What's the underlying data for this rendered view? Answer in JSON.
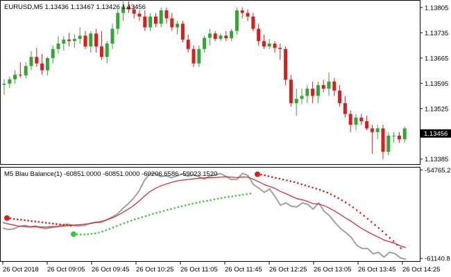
{
  "main_header": "EURUSD,M5  1.13436 1.13467 1.13426 1.13456",
  "indicator_header": "M5 Blau Balance(1) -60851.0000 -60851.0000 -60206.6586 -59023.1520",
  "colors": {
    "bull": "#32a532",
    "bear": "#e01b1b",
    "gray_line": "#a0a0a0",
    "red_line": "#e01b1b",
    "dot_red": "#e01b1b",
    "dot_green": "#32cc32",
    "price_tag_bg": "#000000",
    "price_tag_text": "#ffffff"
  },
  "chart_data": [
    {
      "type": "candlestick",
      "title": "EURUSD,M5",
      "ohlc_header": [
        "1.13436",
        "1.13467",
        "1.13426",
        "1.13456"
      ],
      "ylim": [
        1.13373,
        1.13822
      ],
      "y_ticks": [
        "1.13805",
        "1.13735",
        "1.13665",
        "1.13595",
        "1.13525",
        "1.13456",
        "1.13385"
      ],
      "current_price": "1.13456",
      "candles": [
        [
          1.13591,
          1.13606,
          1.13563,
          1.13594
        ],
        [
          1.13594,
          1.13614,
          1.13582,
          1.13606
        ],
        [
          1.13606,
          1.13631,
          1.13594,
          1.13619
        ],
        [
          1.13619,
          1.13653,
          1.1361,
          1.13617
        ],
        [
          1.13617,
          1.13653,
          1.13608,
          1.13643
        ],
        [
          1.13643,
          1.13684,
          1.13631,
          1.13668
        ],
        [
          1.13668,
          1.13693,
          1.13641,
          1.1365
        ],
        [
          1.1365,
          1.13677,
          1.13619,
          1.13631
        ],
        [
          1.13631,
          1.13668,
          1.13617,
          1.13665
        ],
        [
          1.13665,
          1.137,
          1.1365,
          1.1369
        ],
        [
          1.1369,
          1.13725,
          1.13677,
          1.13705
        ],
        [
          1.13705,
          1.13725,
          1.13686,
          1.13716
        ],
        [
          1.13716,
          1.13735,
          1.13697,
          1.13712
        ],
        [
          1.13712,
          1.1373,
          1.13693,
          1.13718
        ],
        [
          1.13718,
          1.1375,
          1.13705,
          1.13727
        ],
        [
          1.13727,
          1.1374,
          1.1369,
          1.13697
        ],
        [
          1.13697,
          1.1374,
          1.1368,
          1.13733
        ],
        [
          1.13733,
          1.13746,
          1.1368,
          1.13697
        ],
        [
          1.13697,
          1.1374,
          1.1366,
          1.13668
        ],
        [
          1.13668,
          1.13712,
          1.1365,
          1.13705
        ],
        [
          1.13705,
          1.1376,
          1.1369,
          1.13746
        ],
        [
          1.13746,
          1.138,
          1.1373,
          1.1379
        ],
        [
          1.1379,
          1.13822,
          1.13768,
          1.13808
        ],
        [
          1.13808,
          1.13822,
          1.1379,
          1.138
        ],
        [
          1.138,
          1.13812,
          1.13775,
          1.13788
        ],
        [
          1.13788,
          1.13797,
          1.13768,
          1.1378
        ],
        [
          1.1378,
          1.13797,
          1.1374,
          1.1375
        ],
        [
          1.1375,
          1.1379,
          1.1374,
          1.1378
        ],
        [
          1.1378,
          1.1379,
          1.1375,
          1.1376
        ],
        [
          1.1376,
          1.13805,
          1.1375,
          1.13797
        ],
        [
          1.13797,
          1.13805,
          1.1376,
          1.13775
        ],
        [
          1.13775,
          1.1379,
          1.1374,
          1.1375
        ],
        [
          1.1375,
          1.13768,
          1.1373,
          1.1376
        ],
        [
          1.1376,
          1.13768,
          1.13708,
          1.13716
        ],
        [
          1.13716,
          1.1373,
          1.1368,
          1.1369
        ],
        [
          1.1369,
          1.137,
          1.1364,
          1.1365
        ],
        [
          1.1365,
          1.137,
          1.1364,
          1.1369
        ],
        [
          1.1369,
          1.13727,
          1.1368,
          1.13721
        ],
        [
          1.13721,
          1.13746,
          1.137,
          1.13733
        ],
        [
          1.13733,
          1.1374,
          1.13712,
          1.13718
        ],
        [
          1.13718,
          1.13733,
          1.13712,
          1.13727
        ],
        [
          1.13727,
          1.1374,
          1.13712,
          1.1372
        ],
        [
          1.1372,
          1.13746,
          1.13712,
          1.1374
        ],
        [
          1.1374,
          1.13805,
          1.1373,
          1.13797
        ],
        [
          1.13797,
          1.13805,
          1.13775,
          1.1379
        ],
        [
          1.1379,
          1.138,
          1.13768,
          1.1378
        ],
        [
          1.1378,
          1.1379,
          1.1374,
          1.13746
        ],
        [
          1.13746,
          1.1376,
          1.137,
          1.13712
        ],
        [
          1.13712,
          1.1373,
          1.1369,
          1.13697
        ],
        [
          1.13697,
          1.13718,
          1.1369,
          1.13705
        ],
        [
          1.13705,
          1.13712,
          1.1368,
          1.13693
        ],
        [
          1.13693,
          1.13705,
          1.1366,
          1.1369
        ],
        [
          1.1369,
          1.13697,
          1.1359,
          1.13605
        ],
        [
          1.13605,
          1.13618,
          1.1353,
          1.1354
        ],
        [
          1.1354,
          1.1358,
          1.13505,
          1.13552
        ],
        [
          1.13552,
          1.1358,
          1.13537,
          1.1356
        ],
        [
          1.1356,
          1.1359,
          1.1354,
          1.1358
        ],
        [
          1.1358,
          1.136,
          1.1354,
          1.1356
        ],
        [
          1.1356,
          1.136,
          1.1354,
          1.1359
        ],
        [
          1.1359,
          1.13605,
          1.1357,
          1.1358
        ],
        [
          1.1358,
          1.13625,
          1.1356,
          1.136
        ],
        [
          1.136,
          1.1361,
          1.1356,
          1.13575
        ],
        [
          1.13575,
          1.1359,
          1.1353,
          1.1354
        ],
        [
          1.1354,
          1.1356,
          1.135,
          1.1351
        ],
        [
          1.1351,
          1.1352,
          1.1346,
          1.1348
        ],
        [
          1.1348,
          1.1351,
          1.13465,
          1.135
        ],
        [
          1.135,
          1.1351,
          1.1348,
          1.1349
        ],
        [
          1.1349,
          1.13505,
          1.13465,
          1.1347
        ],
        [
          1.1347,
          1.1348,
          1.134,
          1.1346
        ],
        [
          1.1346,
          1.1348,
          1.1344,
          1.1347
        ],
        [
          1.1347,
          1.1348,
          1.13385,
          1.13405
        ],
        [
          1.13405,
          1.1346,
          1.13395,
          1.1345
        ],
        [
          1.1345,
          1.1346,
          1.1343,
          1.1345
        ],
        [
          1.1345,
          1.1346,
          1.1343,
          1.1344
        ],
        [
          1.1344,
          1.13475,
          1.1343,
          1.1347
        ]
      ]
    },
    {
      "type": "line",
      "title": "M5 Blau Balance(1)",
      "values_header": [
        "-60851.0000",
        "-60851.0000",
        "-60206.6586",
        "-59023.1520"
      ],
      "ylim": [
        -61280,
        -54650
      ],
      "y_ticks": [
        "-54765.2",
        "-61140.8"
      ],
      "series": [
        {
          "color": "gray",
          "values": [
            -58950,
            -59060,
            -59010,
            -58830,
            -58760,
            -58860,
            -58800,
            -58940,
            -58990,
            -58910,
            -58860,
            -58720,
            -58680,
            -58770,
            -58800,
            -58760,
            -58620,
            -58540,
            -58560,
            -58380,
            -58170,
            -57950,
            -57560,
            -57220,
            -56820,
            -56300,
            -55520,
            -55030,
            -55040,
            -55250,
            -55200,
            -55330,
            -55200,
            -55060,
            -55230,
            -55120,
            -55260,
            -55430,
            -55220,
            -55120,
            -55030,
            -55240,
            -55470,
            -55450,
            -55020,
            -55170,
            -55810,
            -56070,
            -56380,
            -56140,
            -56700,
            -57310,
            -57140,
            -57390,
            -57430,
            -57140,
            -57250,
            -57590,
            -57140,
            -57740,
            -58070,
            -58560,
            -58980,
            -59280,
            -59640,
            -60200,
            -60430,
            -60430,
            -60810,
            -60700,
            -61050,
            -60690,
            -60790,
            -61100,
            -61200
          ]
        },
        {
          "color": "red",
          "values": [
            -58560,
            -58660,
            -58740,
            -58820,
            -58840,
            -58880,
            -58860,
            -58880,
            -58880,
            -58860,
            -58840,
            -58810,
            -58770,
            -58740,
            -58720,
            -58680,
            -58630,
            -58560,
            -58480,
            -58380,
            -58240,
            -58060,
            -57840,
            -57600,
            -57340,
            -57020,
            -56660,
            -56340,
            -56100,
            -55920,
            -55780,
            -55660,
            -55560,
            -55500,
            -55460,
            -55420,
            -55370,
            -55340,
            -55330,
            -55320,
            -55290,
            -55270,
            -55290,
            -55320,
            -55280,
            -55290,
            -55440,
            -55620,
            -55820,
            -55960,
            -56100,
            -56320,
            -56480,
            -56660,
            -56840,
            -56920,
            -57040,
            -57200,
            -57220,
            -57340,
            -57520,
            -57740,
            -57990,
            -58240,
            -58480,
            -58760,
            -59010,
            -59220,
            -59440,
            -59610,
            -59820,
            -59940,
            -60060,
            -60230,
            -60360
          ]
        },
        {
          "color": "red-dots",
          "values": [
            -58230,
            -58260,
            -58300,
            -58330,
            -58360,
            -58390,
            -58420,
            -58450,
            -58480,
            -58510,
            -58540,
            -58570,
            -58600,
            -58630,
            -58660,
            -58690,
            -58720,
            -58750,
            -58780
          ]
        },
        {
          "color": "green-dots",
          "values": [
            -59390,
            -59410,
            -59415,
            -59410,
            -59400,
            -59370,
            -59340,
            -59280,
            -59200,
            -59110,
            -59010,
            -58910,
            -58810,
            -58700,
            -58600,
            -58510,
            -58420,
            -58330,
            -58250,
            -58170,
            -58090,
            -58010,
            -57930,
            -57860,
            -57790,
            -57720,
            -57650,
            -57580,
            -57510,
            -57440,
            -57380,
            -57320,
            -57260,
            -57200,
            -57140,
            -57090,
            -57040,
            -56990,
            -56940,
            -56890,
            -56840,
            -56790,
            -56750,
            -56710,
            -56670,
            -56630,
            -56590,
            -56550,
            -56510,
            -56470
          ]
        },
        {
          "color": "red-dots",
          "values": [
            -55080,
            -55110,
            -55160,
            -55220,
            -55280,
            -55340,
            -55400,
            -55460,
            -55520,
            -55580,
            -55640,
            -55720,
            -55800,
            -55880,
            -55960,
            -56040,
            -56120,
            -56200,
            -56300,
            -56400,
            -56520,
            -56660,
            -56800,
            -56950,
            -57110,
            -57280,
            -57460,
            -57660,
            -57860,
            -58070,
            -58290,
            -58510,
            -58730,
            -58950,
            -59180,
            -59420,
            -59660,
            -59900,
            -60150,
            -60400
          ]
        }
      ]
    }
  ],
  "time_axis": {
    "labels": [
      "26 Oct 2018",
      "26 Oct 09:05",
      "26 Oct 09:45",
      "26 Oct 10:25",
      "26 Oct 11:05",
      "26 Oct 11:45",
      "26 Oct 12:25",
      "26 Oct 13:05",
      "26 Oct 13:45",
      "26 Oct 14:25"
    ]
  }
}
